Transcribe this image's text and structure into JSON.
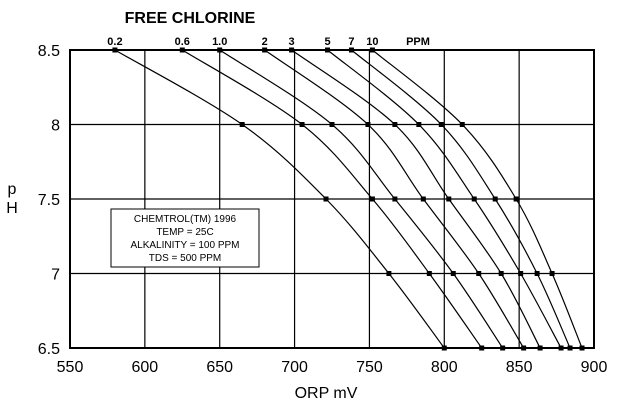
{
  "chart_data": {
    "type": "line",
    "title": "FREE CHLORINE",
    "xlabel": "ORP mV",
    "ylabel_lines": [
      "p",
      "H"
    ],
    "xlim": [
      550,
      900
    ],
    "ylim": [
      6.5,
      8.5
    ],
    "x_ticks": [
      "550",
      "600",
      "650",
      "700",
      "750",
      "800",
      "850",
      "900"
    ],
    "y_ticks": [
      "6.5",
      "7",
      "7.5",
      "8",
      "8.5"
    ],
    "grid": true,
    "ppm_unit_label": "PPM",
    "series": [
      {
        "name": "0.2",
        "points": [
          [
            580,
            8.5
          ],
          [
            665,
            8.0
          ],
          [
            721,
            7.5
          ],
          [
            763,
            7.0
          ],
          [
            800,
            6.5
          ]
        ]
      },
      {
        "name": "0.6",
        "points": [
          [
            625,
            8.5
          ],
          [
            705,
            8.0
          ],
          [
            752,
            7.5
          ],
          [
            790,
            7.0
          ],
          [
            825,
            6.5
          ]
        ]
      },
      {
        "name": "1.0",
        "points": [
          [
            650,
            8.5
          ],
          [
            725,
            8.0
          ],
          [
            767,
            7.5
          ],
          [
            806,
            7.0
          ],
          [
            839,
            6.5
          ]
        ]
      },
      {
        "name": "2",
        "points": [
          [
            680,
            8.5
          ],
          [
            749,
            8.0
          ],
          [
            786,
            7.5
          ],
          [
            823,
            7.0
          ],
          [
            853,
            6.5
          ]
        ]
      },
      {
        "name": "3",
        "points": [
          [
            698,
            8.5
          ],
          [
            767,
            8.0
          ],
          [
            803,
            7.5
          ],
          [
            838,
            7.0
          ],
          [
            864,
            6.5
          ]
        ]
      },
      {
        "name": "5",
        "points": [
          [
            722,
            8.5
          ],
          [
            783,
            8.0
          ],
          [
            820,
            7.5
          ],
          [
            851,
            7.0
          ],
          [
            878,
            6.5
          ]
        ]
      },
      {
        "name": "7",
        "points": [
          [
            738,
            8.5
          ],
          [
            798,
            8.0
          ],
          [
            834,
            7.5
          ],
          [
            862,
            7.0
          ],
          [
            884,
            6.5
          ]
        ]
      },
      {
        "name": "10",
        "points": [
          [
            752,
            8.5
          ],
          [
            812,
            8.0
          ],
          [
            848,
            7.5
          ],
          [
            872,
            7.0
          ],
          [
            892,
            6.5
          ]
        ]
      }
    ],
    "info_box": [
      "CHEMTROL(TM) 1996",
      "TEMP = 25C",
      "ALKALINITY = 100 PPM",
      "TDS = 500 PPM"
    ]
  }
}
